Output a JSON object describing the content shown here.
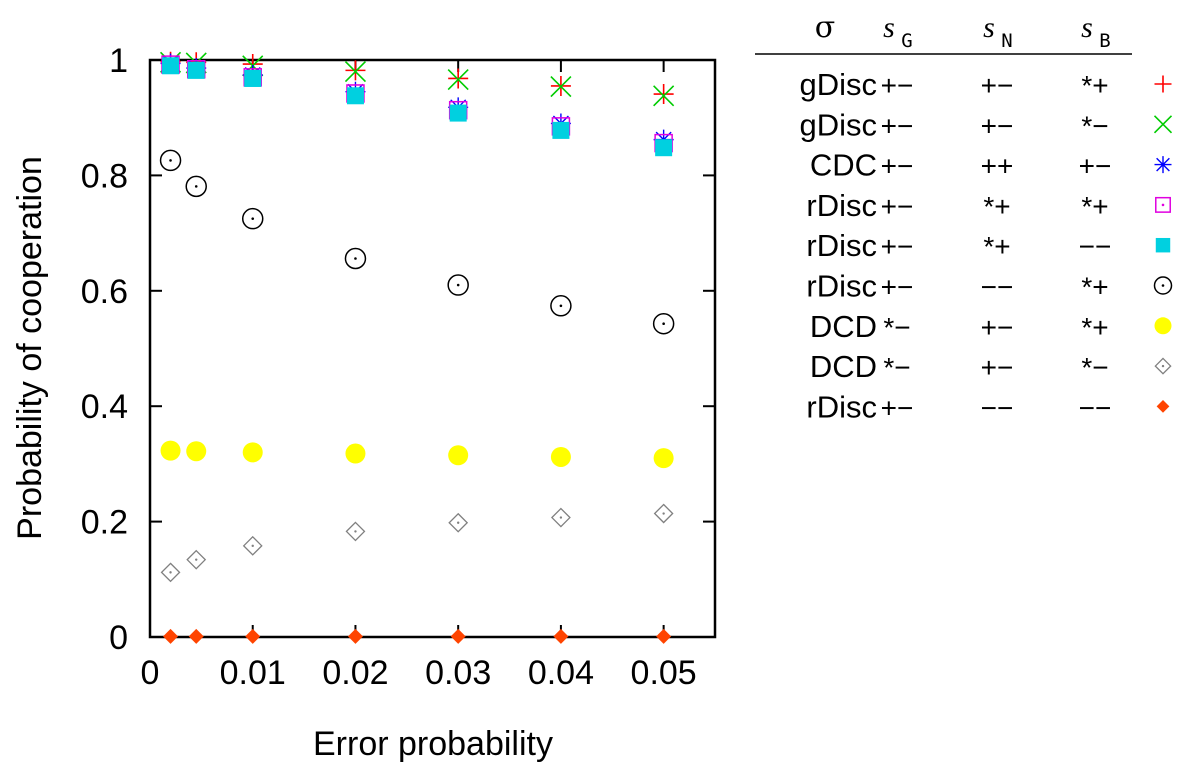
{
  "chart_data": {
    "type": "scatter",
    "xlabel": "Error probability",
    "ylabel": "Probability of cooperation",
    "xlim": [
      0,
      0.055
    ],
    "ylim": [
      0,
      1
    ],
    "xticks": [
      0,
      0.01,
      0.02,
      0.03,
      0.04,
      0.05
    ],
    "xtick_labels": [
      "0",
      "0.01",
      "0.02",
      "0.03",
      "0.04",
      "0.05"
    ],
    "yticks": [
      0,
      0.2,
      0.4,
      0.6,
      0.8,
      1
    ],
    "ytick_labels": [
      "0",
      "0.2",
      "0.4",
      "0.6",
      "0.8",
      "1"
    ],
    "grid": false,
    "legend_position": "right",
    "legend_header": {
      "sigma": "σ",
      "cols": [
        {
          "s": "s",
          "sub": "G"
        },
        {
          "s": "s",
          "sub": "N"
        },
        {
          "s": "s",
          "sub": "B"
        }
      ]
    },
    "x": [
      0.002,
      0.0045,
      0.01,
      0.02,
      0.03,
      0.04,
      0.05
    ],
    "series": [
      {
        "name": "gDisc",
        "codes": [
          "+−",
          "+−",
          "*+"
        ],
        "marker": "plus",
        "color": "#ff0000",
        "values": [
          0.997,
          0.996,
          0.993,
          0.982,
          0.968,
          0.955,
          0.941
        ]
      },
      {
        "name": "gDisc",
        "codes": [
          "+−",
          "+−",
          "*−"
        ],
        "marker": "cross",
        "color": "#00cc00",
        "values": [
          0.996,
          0.995,
          0.99,
          0.98,
          0.966,
          0.954,
          0.938
        ]
      },
      {
        "name": "CDC",
        "codes": [
          "+−",
          "++",
          "+−"
        ],
        "marker": "asterisk",
        "color": "#0000ff",
        "values": [
          0.994,
          0.986,
          0.974,
          0.945,
          0.918,
          0.89,
          0.862
        ]
      },
      {
        "name": "rDisc",
        "codes": [
          "+−",
          "*+",
          "*+"
        ],
        "marker": "open-square-dot",
        "color": "#e000e0",
        "values": [
          0.992,
          0.984,
          0.97,
          0.942,
          0.913,
          0.885,
          0.856
        ]
      },
      {
        "name": "rDisc",
        "codes": [
          "+−",
          "*+",
          "−−"
        ],
        "marker": "filled-square",
        "color": "#00d0e0",
        "values": [
          0.99,
          0.982,
          0.968,
          0.938,
          0.908,
          0.878,
          0.848
        ]
      },
      {
        "name": "rDisc",
        "codes": [
          "+−",
          "−−",
          "*+"
        ],
        "marker": "open-circle-dot",
        "color": "#000000",
        "values": [
          0.826,
          0.781,
          0.725,
          0.656,
          0.61,
          0.574,
          0.543
        ]
      },
      {
        "name": "DCD",
        "codes": [
          "*−",
          "+−",
          "*+"
        ],
        "marker": "filled-circle",
        "color": "#ffff00",
        "values": [
          0.323,
          0.322,
          0.32,
          0.318,
          0.315,
          0.312,
          0.31
        ]
      },
      {
        "name": "DCD",
        "codes": [
          "*−",
          "+−",
          "*−"
        ],
        "marker": "open-diamond-dot",
        "color": "#808080",
        "values": [
          0.112,
          0.134,
          0.158,
          0.183,
          0.198,
          0.207,
          0.214
        ]
      },
      {
        "name": "rDisc",
        "codes": [
          "+−",
          "−−",
          "−−"
        ],
        "marker": "filled-diamond",
        "color": "#ff4400",
        "values": [
          0.001,
          0.001,
          0.001,
          0.001,
          0.001,
          0.001,
          0.001
        ]
      }
    ]
  }
}
